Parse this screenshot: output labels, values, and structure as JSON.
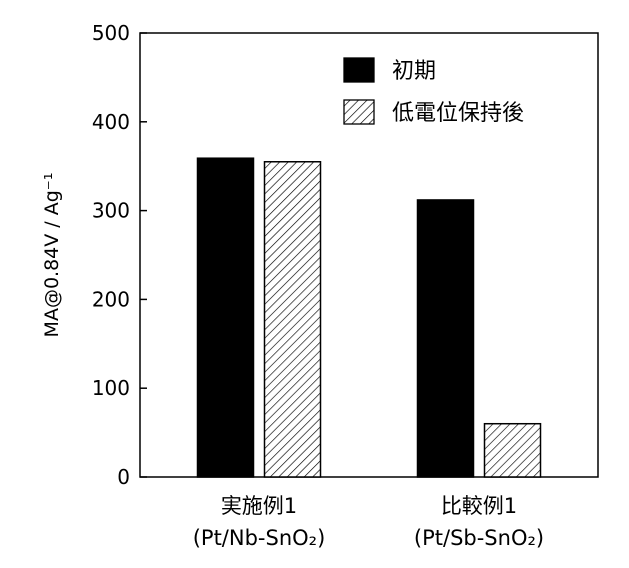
{
  "chart_data": {
    "type": "bar",
    "categories": [
      {
        "line1": "実施例1",
        "line2": "(Pt/Nb-SnO₂)"
      },
      {
        "line1": "比較例1",
        "line2": "(Pt/Sb-SnO₂)"
      }
    ],
    "series": [
      {
        "name": "初期",
        "values": [
          359,
          312
        ],
        "fill": "solid",
        "color": "#000000"
      },
      {
        "name": "低電位保持後",
        "values": [
          355,
          60
        ],
        "fill": "hatched",
        "color": "#000000"
      }
    ],
    "ylabel": "MA@0.84V / Ag⁻¹",
    "xlabel": "",
    "ylim": [
      0,
      500
    ],
    "yticks": [
      0,
      100,
      200,
      300,
      400,
      500
    ],
    "grid": false,
    "legend_position": "top-right"
  }
}
